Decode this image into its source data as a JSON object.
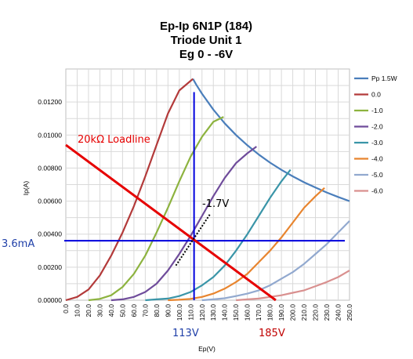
{
  "chart_data": {
    "type": "line",
    "title_lines": [
      "Ep-Ip 6N1P (184)",
      "Triode Unit 1",
      "Eg 0 - -6V"
    ],
    "xlabel": "Ep(V)",
    "ylabel": "Ip(A)",
    "xlim": [
      0,
      250
    ],
    "ylim": [
      0,
      0.014
    ],
    "xticks": [
      "0.0",
      "10.0",
      "20.0",
      "30.0",
      "40.0",
      "50.0",
      "60.0",
      "70.0",
      "80.0",
      "90.0",
      "100.0",
      "110.0",
      "120.0",
      "130.0",
      "140.0",
      "150.0",
      "160.0",
      "170.0",
      "180.0",
      "190.0",
      "200.0",
      "210.0",
      "220.0",
      "230.0",
      "240.0",
      "250.0"
    ],
    "yticks": [
      "0.00000",
      "0.00200",
      "0.00400",
      "0.00600",
      "0.00800",
      "0.01000",
      "0.01200"
    ],
    "ytick_values": [
      0,
      0.002,
      0.004,
      0.006,
      0.008,
      0.01,
      0.012
    ],
    "grid": true,
    "legend_position": "right",
    "series": [
      {
        "name": "Pp  1.5W",
        "color": "#4a7ebb",
        "points": [
          [
            112,
            0.0134
          ],
          [
            115,
            0.01304
          ],
          [
            120,
            0.0125
          ],
          [
            130,
            0.01154
          ],
          [
            140,
            0.01071
          ],
          [
            150,
            0.01
          ],
          [
            160,
            0.00938
          ],
          [
            170,
            0.00882
          ],
          [
            180,
            0.00833
          ],
          [
            190,
            0.00789
          ],
          [
            200,
            0.0075
          ],
          [
            210,
            0.00714
          ],
          [
            220,
            0.00682
          ],
          [
            230,
            0.00652
          ],
          [
            240,
            0.00625
          ],
          [
            250,
            0.006
          ]
        ]
      },
      {
        "name": "0.0",
        "color": "#b33a3a",
        "points": [
          [
            0,
            0
          ],
          [
            10,
            0.0002
          ],
          [
            20,
            0.00065
          ],
          [
            30,
            0.0015
          ],
          [
            40,
            0.0027
          ],
          [
            50,
            0.0041
          ],
          [
            60,
            0.0057
          ],
          [
            70,
            0.0075
          ],
          [
            80,
            0.0094
          ],
          [
            90,
            0.0113
          ],
          [
            100,
            0.0127
          ],
          [
            112,
            0.0134
          ]
        ]
      },
      {
        "name": "-1.0",
        "color": "#8db33f",
        "points": [
          [
            20,
            0
          ],
          [
            30,
            8e-05
          ],
          [
            40,
            0.0003
          ],
          [
            50,
            0.0008
          ],
          [
            60,
            0.0016
          ],
          [
            70,
            0.0027
          ],
          [
            80,
            0.0041
          ],
          [
            90,
            0.0056
          ],
          [
            100,
            0.0072
          ],
          [
            110,
            0.0087
          ],
          [
            120,
            0.0099
          ],
          [
            130,
            0.0108
          ],
          [
            139,
            0.0111
          ]
        ]
      },
      {
        "name": "-2.0",
        "color": "#6f4c9b",
        "points": [
          [
            40,
            0
          ],
          [
            50,
            5e-05
          ],
          [
            60,
            0.0002
          ],
          [
            70,
            0.0005
          ],
          [
            80,
            0.001
          ],
          [
            90,
            0.0018
          ],
          [
            100,
            0.0028
          ],
          [
            110,
            0.0039
          ],
          [
            120,
            0.0051
          ],
          [
            130,
            0.0063
          ],
          [
            140,
            0.0074
          ],
          [
            150,
            0.0083
          ],
          [
            160,
            0.0089
          ],
          [
            168,
            0.0093
          ]
        ]
      },
      {
        "name": "-3.0",
        "color": "#3a95a8",
        "points": [
          [
            70,
            0
          ],
          [
            80,
            5e-05
          ],
          [
            90,
            0.0001
          ],
          [
            100,
            0.00025
          ],
          [
            110,
            0.0005
          ],
          [
            120,
            0.0009
          ],
          [
            130,
            0.0014
          ],
          [
            140,
            0.0021
          ],
          [
            150,
            0.003
          ],
          [
            160,
            0.004
          ],
          [
            170,
            0.0051
          ],
          [
            180,
            0.0062
          ],
          [
            190,
            0.0072
          ],
          [
            198,
            0.0079
          ]
        ]
      },
      {
        "name": "-4.0",
        "color": "#e8852f",
        "points": [
          [
            90,
            0
          ],
          [
            100,
            3e-05
          ],
          [
            110,
            8e-05
          ],
          [
            120,
            0.0002
          ],
          [
            130,
            0.0004
          ],
          [
            140,
            0.0007
          ],
          [
            150,
            0.0011
          ],
          [
            160,
            0.0016
          ],
          [
            170,
            0.0023
          ],
          [
            180,
            0.003
          ],
          [
            190,
            0.0038
          ],
          [
            200,
            0.0047
          ],
          [
            210,
            0.0056
          ],
          [
            220,
            0.0063
          ],
          [
            228,
            0.0068
          ]
        ]
      },
      {
        "name": "-5.0",
        "color": "#92a9cf",
        "points": [
          [
            120,
            0
          ],
          [
            130,
            5e-05
          ],
          [
            140,
            0.00012
          ],
          [
            150,
            0.00025
          ],
          [
            160,
            0.0004
          ],
          [
            170,
            0.0006
          ],
          [
            180,
            0.0009
          ],
          [
            190,
            0.0013
          ],
          [
            200,
            0.0017
          ],
          [
            210,
            0.0022
          ],
          [
            220,
            0.0028
          ],
          [
            230,
            0.0034
          ],
          [
            240,
            0.0041
          ],
          [
            250,
            0.0048
          ]
        ]
      },
      {
        "name": "-6.0",
        "color": "#d9908f",
        "points": [
          [
            150,
            0
          ],
          [
            160,
            5e-05
          ],
          [
            170,
            0.0001
          ],
          [
            180,
            0.0002
          ],
          [
            190,
            0.0003
          ],
          [
            200,
            0.00045
          ],
          [
            210,
            0.0006
          ],
          [
            220,
            0.00085
          ],
          [
            230,
            0.0011
          ],
          [
            240,
            0.0014
          ],
          [
            250,
            0.0018
          ]
        ]
      }
    ],
    "annotations": {
      "loadline_label": "20kΩ Loadline",
      "loadline": {
        "from": [
          0,
          0.0094
        ],
        "to": [
          185,
          0
        ]
      },
      "bias_label": "-1.7V",
      "current_label": "3.6mA",
      "current_value": 0.0036,
      "voltage_label": "113V",
      "voltage_value": 113,
      "supply_label": "185V",
      "supply_value": 185
    }
  }
}
